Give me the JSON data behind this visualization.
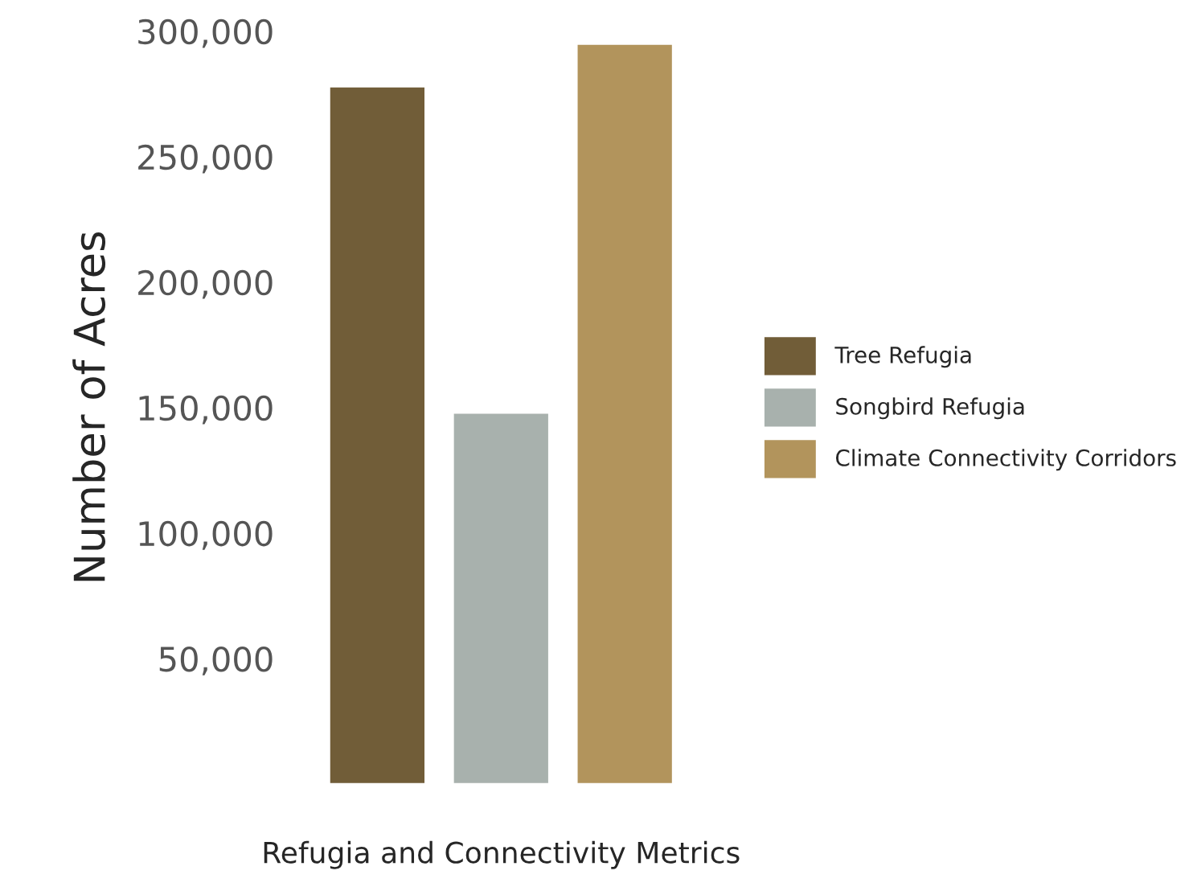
{
  "chart_data": {
    "type": "bar",
    "xlabel": "Refugia and Connectivity Metrics",
    "ylabel": "Number of Acres",
    "categories": [
      null
    ],
    "series": [
      {
        "name": "Tree Refugia",
        "color": "#715d38",
        "values": [
          278000
        ]
      },
      {
        "name": "Songbird Refugia",
        "color": "#a8b1ad",
        "values": [
          148000
        ]
      },
      {
        "name": "Climate Connectivity Corridors",
        "color": "#b2945c",
        "values": [
          295000
        ]
      }
    ],
    "ylim": [
      0,
      300000
    ],
    "yticks": [
      {
        "value": 50000,
        "label": "50,000"
      },
      {
        "value": 100000,
        "label": "100,000"
      },
      {
        "value": 150000,
        "label": "150,000"
      },
      {
        "value": 200000,
        "label": "200,000"
      },
      {
        "value": 250000,
        "label": "250,000"
      },
      {
        "value": 300000,
        "label": "300,000"
      }
    ],
    "legend": "right",
    "grid": false
  }
}
